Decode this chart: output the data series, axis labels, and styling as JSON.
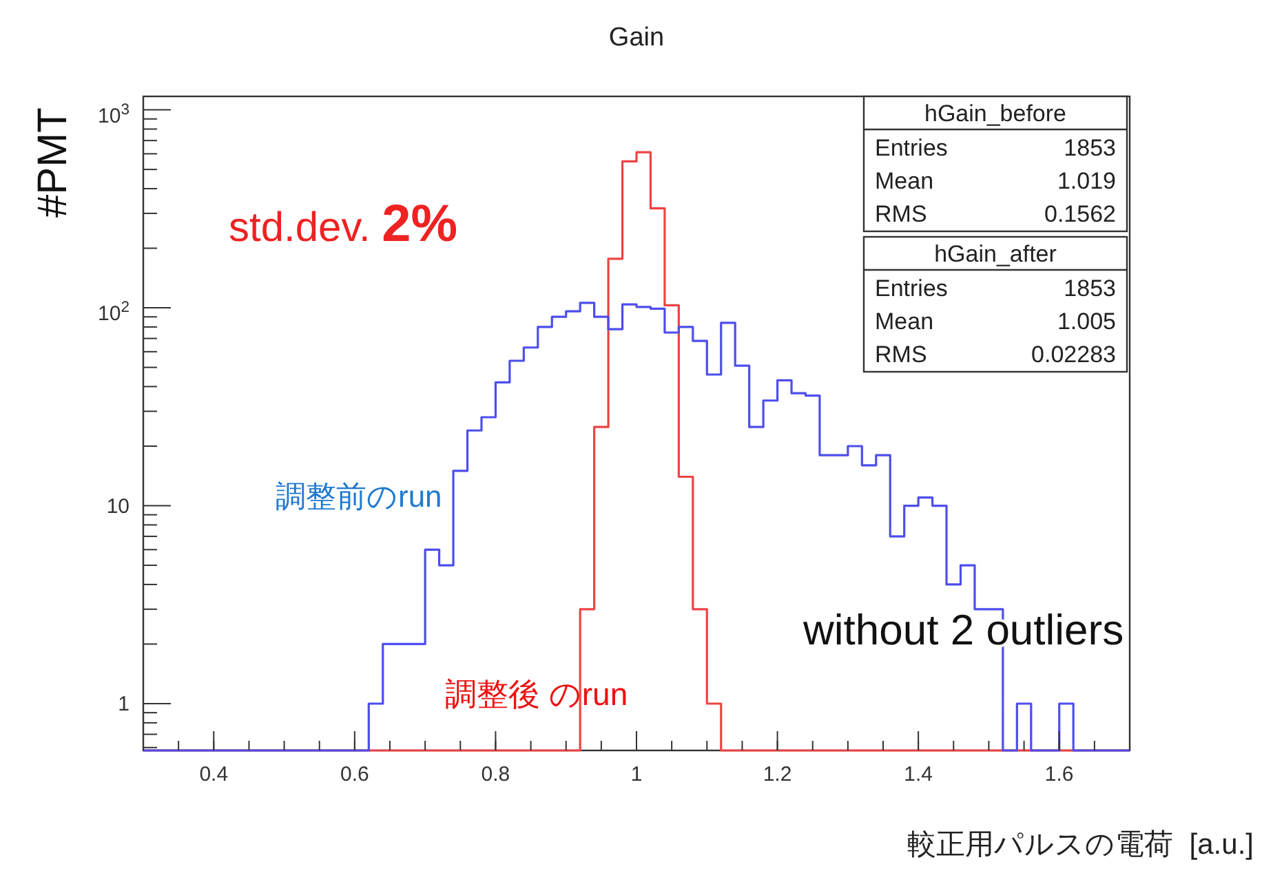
{
  "chart_data": {
    "type": "histogram",
    "title": "Gain",
    "xlabel": "較正用パルスの電荷  [a.u.]",
    "ylabel": "#PMT",
    "bins": [
      0.3,
      0.32,
      0.34,
      0.36,
      0.38,
      0.4,
      0.42,
      0.44,
      0.46,
      0.48,
      0.5,
      0.52,
      0.54,
      0.56,
      0.58,
      0.6,
      0.62,
      0.64,
      0.66,
      0.68,
      0.7,
      0.72,
      0.74,
      0.76,
      0.78,
      0.8,
      0.82,
      0.84,
      0.86,
      0.88,
      0.9,
      0.92,
      0.94,
      0.96,
      0.98,
      1.0,
      1.02,
      1.04,
      1.06,
      1.08,
      1.1,
      1.12,
      1.14,
      1.16,
      1.18,
      1.2,
      1.22,
      1.24,
      1.26,
      1.28,
      1.3,
      1.32,
      1.34,
      1.36,
      1.38,
      1.4,
      1.42,
      1.44,
      1.46,
      1.48,
      1.5,
      1.52,
      1.54,
      1.56,
      1.58,
      1.6,
      1.62,
      1.64,
      1.66,
      1.68,
      1.7
    ],
    "series": [
      {
        "color": "#ee4444",
        "values": [
          null,
          null,
          null,
          null,
          null,
          null,
          null,
          null,
          null,
          null,
          null,
          null,
          null,
          null,
          null,
          null,
          null,
          null,
          null,
          null,
          null,
          null,
          null,
          null,
          null,
          null,
          null,
          null,
          null,
          null,
          null,
          3,
          25,
          177,
          549,
          611,
          318,
          103,
          14,
          3,
          1,
          null,
          null,
          null,
          null,
          null,
          null,
          null,
          null,
          null,
          null,
          null,
          null,
          null,
          null,
          null,
          null,
          null,
          null,
          null,
          null,
          null,
          null,
          null,
          null,
          null,
          null,
          null,
          null,
          null
        ]
      },
      {
        "color": "#4d4dee",
        "values": [
          null,
          null,
          null,
          null,
          null,
          null,
          null,
          null,
          null,
          null,
          null,
          null,
          null,
          null,
          null,
          null,
          1,
          2,
          2,
          2,
          6,
          5,
          15,
          24,
          28,
          42,
          54,
          63,
          80,
          90,
          96,
          106,
          90,
          78,
          104,
          101,
          99,
          75,
          80,
          68,
          46,
          84,
          51,
          25,
          34,
          43,
          37,
          36,
          18,
          18,
          20,
          16,
          18,
          7,
          10,
          11,
          10,
          4,
          5,
          3,
          3,
          null,
          1,
          null,
          null,
          1,
          null,
          null,
          null,
          null
        ]
      }
    ],
    "xlim": [
      0.3,
      1.7
    ],
    "xticks": [
      0.4,
      0.6,
      0.8,
      1,
      1.2,
      1.4,
      1.6
    ],
    "ylim": [
      0.58,
      1170
    ],
    "yticks": [
      {
        "value": 1,
        "label": "1"
      },
      {
        "value": 10,
        "label": "10"
      },
      {
        "value": 100,
        "label": "10$^{2}$"
      },
      {
        "value": 1000,
        "label": "10$^{3}$"
      }
    ],
    "log": "y",
    "grid": false,
    "annotations": [
      "std.dev. 2%",
      "調整前のrun",
      "調整後 のrun",
      "without 2 outliers",
      "hGain_before",
      "Entries",
      "1853",
      "Mean",
      "1.019",
      "RMS",
      "0.1562",
      "hGain_after",
      "Entries",
      "1853",
      "Mean",
      "1.005",
      "RMS",
      "0.02283"
    ]
  }
}
